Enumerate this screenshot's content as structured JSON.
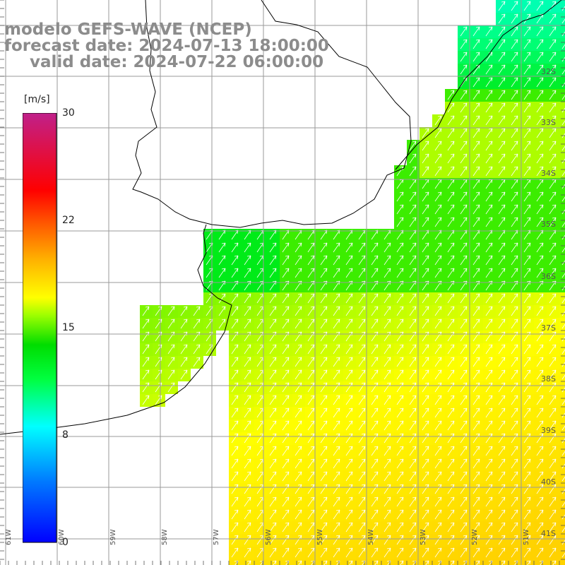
{
  "title": {
    "line1": "modelo GEFS-WAVE (NCEP)",
    "line2": "forecast date: 2024-07-13 18:00:00",
    "line3": "valid date: 2024-07-22 06:00:00"
  },
  "colorbar": {
    "unit": "[m/s]",
    "ticks": [
      "30",
      "22",
      "15",
      "8",
      "0"
    ],
    "tick_values": [
      30,
      22,
      15,
      8,
      0
    ],
    "range": [
      0,
      30
    ],
    "colors": [
      "#0000ff",
      "#0080ff",
      "#00ffff",
      "#00ff40",
      "#00e000",
      "#80ff00",
      "#ffff00",
      "#ffc000",
      "#ff6000",
      "#ff0000",
      "#e0005a",
      "#c0208a"
    ]
  },
  "lat_labels": [
    "32S",
    "33S",
    "34S",
    "35S",
    "36S",
    "37S",
    "38S",
    "39S",
    "40S",
    "41S"
  ],
  "lon_labels": [
    "61W",
    "60W",
    "59W",
    "58W",
    "57W",
    "56W",
    "55W",
    "54W",
    "53W",
    "52W",
    "51W"
  ],
  "styling": {
    "grid_color": "#9a9a9a",
    "coast_color": "#000000",
    "arrow_color": "#ffffff",
    "title_color": "#8c8c8c"
  }
}
